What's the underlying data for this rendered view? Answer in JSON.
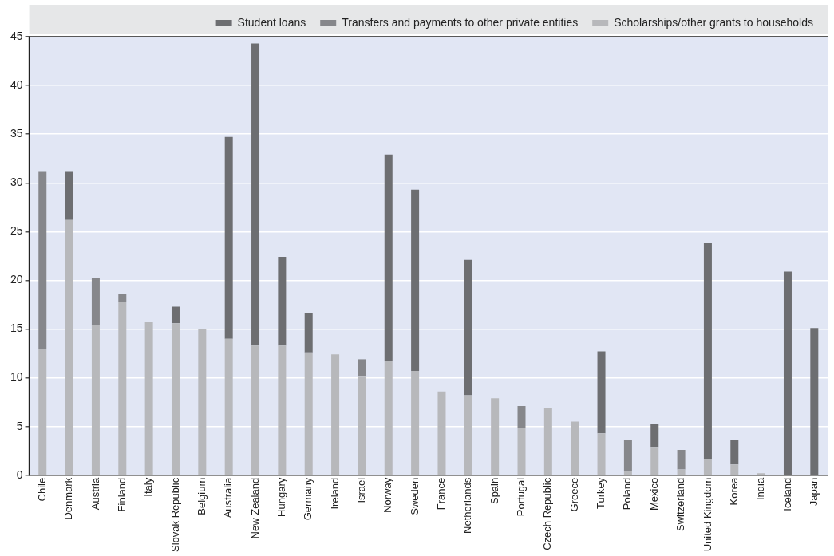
{
  "chart_data": {
    "type": "bar",
    "stacked": true,
    "categories": [
      "Chile",
      "Denmark",
      "Austria",
      "Finland",
      "Italy",
      "Slovak Republic",
      "Belgium",
      "Australia",
      "New Zealand",
      "Hungary",
      "Germany",
      "Ireland",
      "Israel",
      "Norway",
      "Sweden",
      "France",
      "Netherlands",
      "Spain",
      "Portugal",
      "Czech Republic",
      "Greece",
      "Turkey",
      "Poland",
      "Mexico",
      "Switzerland",
      "United Kingdom",
      "Korea",
      "India",
      "Iceland",
      "Japan"
    ],
    "series": [
      {
        "name": "Scholarships/other grants to households",
        "color": "#b7b8bb",
        "values": [
          13.0,
          26.2,
          15.4,
          17.8,
          15.7,
          15.6,
          15.0,
          14.0,
          13.3,
          13.3,
          12.6,
          12.4,
          10.2,
          11.7,
          10.7,
          8.6,
          8.2,
          7.9,
          4.9,
          6.9,
          5.5,
          4.3,
          0.4,
          2.9,
          0.6,
          1.7,
          1.1,
          0.2,
          null,
          null
        ]
      },
      {
        "name": "Transfers and payments to other private entities",
        "color": "#86878b",
        "values": [
          18.2,
          null,
          4.8,
          0.8,
          null,
          null,
          null,
          null,
          null,
          null,
          null,
          null,
          1.7,
          null,
          null,
          null,
          null,
          null,
          2.2,
          null,
          null,
          null,
          3.2,
          null,
          2.0,
          null,
          null,
          null,
          null,
          null
        ]
      },
      {
        "name": "Student loans",
        "color": "#6d6e71",
        "values": [
          null,
          5.0,
          null,
          null,
          null,
          1.7,
          null,
          20.7,
          31.0,
          9.1,
          4.0,
          null,
          null,
          21.2,
          18.6,
          null,
          13.9,
          null,
          null,
          null,
          null,
          8.4,
          null,
          2.4,
          null,
          22.1,
          2.5,
          null,
          20.9,
          15.1
        ]
      }
    ],
    "ylim": [
      0,
      45
    ],
    "yticks": [
      0,
      5,
      10,
      15,
      20,
      25,
      30,
      35,
      40,
      45
    ],
    "grid": "y",
    "legend": "top"
  }
}
